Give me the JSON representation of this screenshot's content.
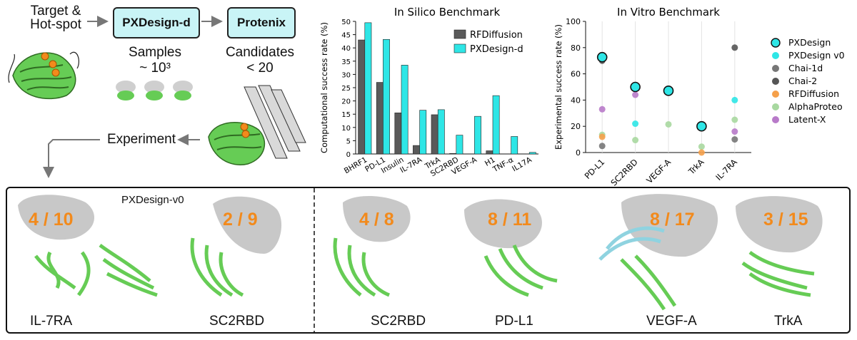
{
  "workflow": {
    "target_label_line1": "Target &",
    "target_label_line2": "Hot-spot",
    "step1_box": "PXDesign-d",
    "step1_caption": "Samples",
    "step1_count": "~ 10³",
    "step2_box": "Protenix",
    "step2_caption": "Candidates",
    "step2_count": "< 20",
    "experiment_label": "Experiment"
  },
  "colors": {
    "cyan": "#2ee6e6",
    "gray_bar": "#5a5a5a",
    "orange": "#f28a1c",
    "green": "#66cc55",
    "box_fill": "#c9f4f6"
  },
  "chart_data": [
    {
      "type": "bar",
      "title": "In Silico Benchmark",
      "ylabel": "Computational success rate (%)",
      "xlabel": "",
      "ylim": [
        0,
        50
      ],
      "yticks": [
        0,
        5,
        10,
        15,
        20,
        25,
        30,
        35,
        40,
        45,
        50
      ],
      "categories": [
        "BHRF1",
        "PD-L1",
        "Insulin",
        "IL-7RA",
        "TrkA",
        "SC2RBD",
        "VEGF-A",
        "H1",
        "TNF-α",
        "IL17A"
      ],
      "series": [
        {
          "name": "RFDiffusion",
          "color": "#5a5a5a",
          "values": [
            43,
            27,
            15.5,
            3.2,
            14.8,
            0.2,
            0,
            1.2,
            0,
            0
          ]
        },
        {
          "name": "PXDesign-d",
          "color": "#2ee6e6",
          "values": [
            49.5,
            43.2,
            33.5,
            16.5,
            16.7,
            7.1,
            14.2,
            22,
            6.6,
            0.6
          ]
        }
      ],
      "legend": "top-right"
    },
    {
      "type": "scatter",
      "title": "In Vitro Benchmark",
      "ylabel": "Experimental success rate (%)",
      "xlabel": "",
      "ylim": [
        0,
        100
      ],
      "yticks": [
        0,
        20,
        40,
        60,
        80,
        100
      ],
      "categories": [
        "PD-L1",
        "SC2RBD",
        "VEGF-A",
        "TrkA",
        "IL-7RA"
      ],
      "series": [
        {
          "name": "PXDesign",
          "color": "#2ee6e6",
          "outlined": true,
          "values": [
            72.7,
            50,
            47.1,
            20,
            null
          ]
        },
        {
          "name": "PXDesign v0",
          "color": "#2ee6e6",
          "values": [
            null,
            22,
            null,
            null,
            40
          ]
        },
        {
          "name": "Chai-1d",
          "color": "#777777",
          "values": [
            5,
            null,
            null,
            null,
            10
          ]
        },
        {
          "name": "Chai-2",
          "color": "#555555",
          "values": [
            70,
            null,
            null,
            null,
            80
          ]
        },
        {
          "name": "RFDiffusion",
          "color": "#f5a04a",
          "values": [
            12,
            null,
            null,
            0,
            null
          ]
        },
        {
          "name": "AlphaProteo",
          "color": "#a8d8a0",
          "values": [
            13.5,
            9.5,
            21.5,
            4.5,
            25
          ]
        },
        {
          "name": "Latent-X",
          "color": "#b87ac9",
          "values": [
            33,
            44,
            null,
            null,
            16
          ]
        }
      ],
      "legend": "right"
    }
  ],
  "gallery": {
    "v0_label": "PXDesign-v0",
    "items": [
      {
        "ratio": "4 / 10",
        "target": "IL-7RA"
      },
      {
        "ratio": "2 / 9",
        "target": "SC2RBD"
      },
      {
        "ratio": "4 / 8",
        "target": "SC2RBD"
      },
      {
        "ratio": "8 / 11",
        "target": "PD-L1"
      },
      {
        "ratio": "8 / 17",
        "target": "VEGF-A"
      },
      {
        "ratio": "3 / 15",
        "target": "TrkA"
      }
    ]
  }
}
